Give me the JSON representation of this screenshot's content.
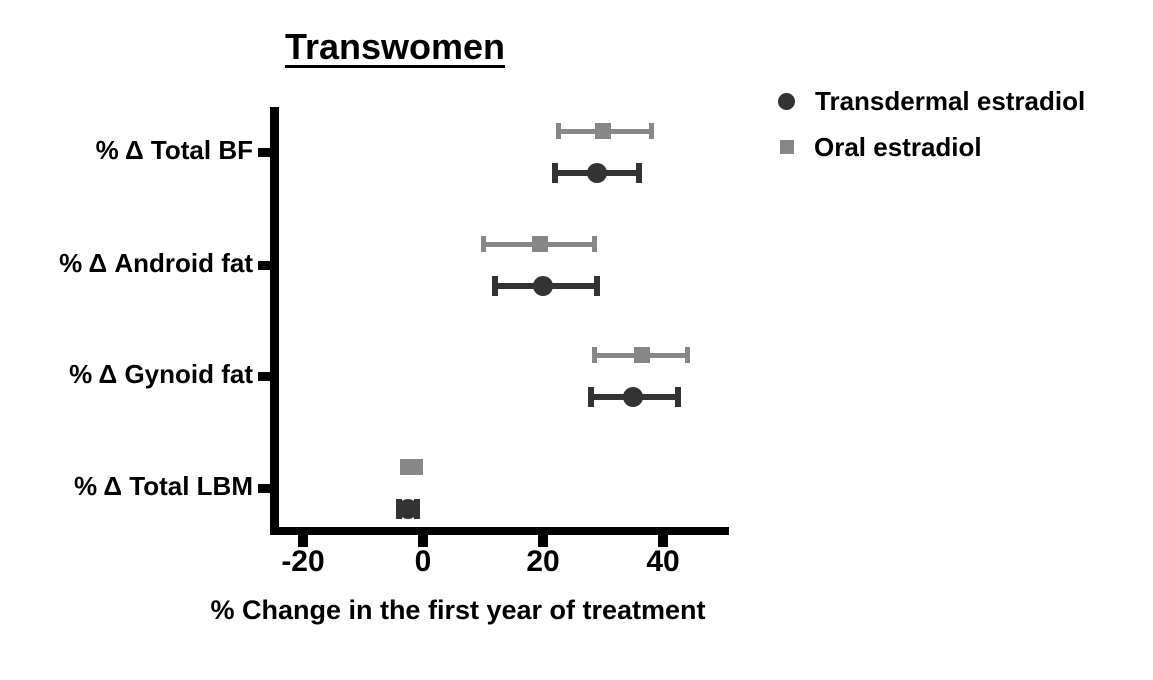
{
  "chart_data": {
    "type": "scatter",
    "subtype": "horizontal-dot-plot-with-error-bars",
    "title": "Transwomen",
    "xlabel": "% Change in the first year of treatment",
    "ylabel": "",
    "categories": [
      "% Δ Total BF",
      "% Δ Android fat",
      "% Δ Gynoid fat",
      "% Δ Total LBM"
    ],
    "series": [
      {
        "name": "Transdermal estradiol",
        "marker": "circle",
        "color": "#333333",
        "values": [
          29,
          20,
          35,
          -2.5
        ],
        "ci_low": [
          22,
          12,
          28,
          -4
        ],
        "ci_high": [
          36,
          29,
          42.5,
          -1
        ]
      },
      {
        "name": "Oral estradiol",
        "marker": "square",
        "color": "#878787",
        "values": [
          30,
          19.5,
          36.5,
          -2
        ],
        "ci_low": [
          22.5,
          10,
          28.5,
          -3.5
        ],
        "ci_high": [
          38,
          28.5,
          44,
          -0.5
        ]
      }
    ],
    "x_ticks": [
      -20,
      0,
      20,
      40
    ],
    "xlim": [
      -25.5,
      51
    ],
    "grid": false,
    "legend_position": "top-right",
    "axis_color": "#000000",
    "row_order_note": "Oral estradiol plotted above Transdermal estradiol within each category"
  }
}
